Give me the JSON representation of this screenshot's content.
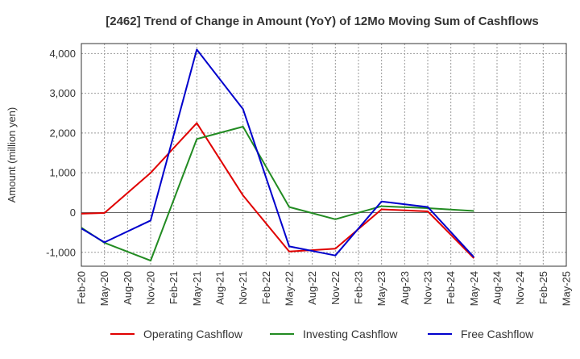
{
  "chart_data": {
    "type": "line",
    "title": "[2462]  Trend of Change in Amount (YoY) of 12Mo Moving Sum of Cashflows",
    "xlabel": "",
    "ylabel": "Amount (million yen)",
    "ylim": [
      -1350,
      4250
    ],
    "yticks": [
      -1000,
      0,
      1000,
      2000,
      3000,
      4000
    ],
    "ytick_labels": [
      "-1,000",
      "0",
      "1,000",
      "2,000",
      "3,000",
      "4,000"
    ],
    "categories": [
      "Feb-20",
      "May-20",
      "Aug-20",
      "Nov-20",
      "Feb-21",
      "May-21",
      "Aug-21",
      "Nov-21",
      "Feb-22",
      "May-22",
      "Aug-22",
      "Nov-22",
      "Feb-23",
      "May-23",
      "Aug-23",
      "Nov-23",
      "Feb-24",
      "May-24",
      "Aug-24",
      "Nov-24",
      "Feb-25",
      "May-25"
    ],
    "grid": true,
    "legend_position": "bottom",
    "series": [
      {
        "name": "Operating Cashflow",
        "color": "#e00000",
        "values": [
          -30,
          -10,
          null,
          1000,
          null,
          2250,
          null,
          430,
          null,
          -980,
          null,
          -910,
          null,
          80,
          null,
          30,
          null,
          -1150,
          null,
          null,
          null,
          null
        ]
      },
      {
        "name": "Investing Cashflow",
        "color": "#228b22",
        "values": [
          -380,
          -760,
          null,
          -1210,
          null,
          1850,
          null,
          2160,
          null,
          140,
          null,
          -170,
          null,
          160,
          null,
          110,
          null,
          40,
          null,
          null,
          null,
          null
        ]
      },
      {
        "name": "Free Cashflow",
        "color": "#0000cc",
        "values": [
          -400,
          -750,
          null,
          -200,
          null,
          4100,
          null,
          2600,
          null,
          -850,
          null,
          -1080,
          null,
          280,
          null,
          140,
          null,
          -1120,
          null,
          null,
          null,
          null
        ]
      }
    ]
  }
}
